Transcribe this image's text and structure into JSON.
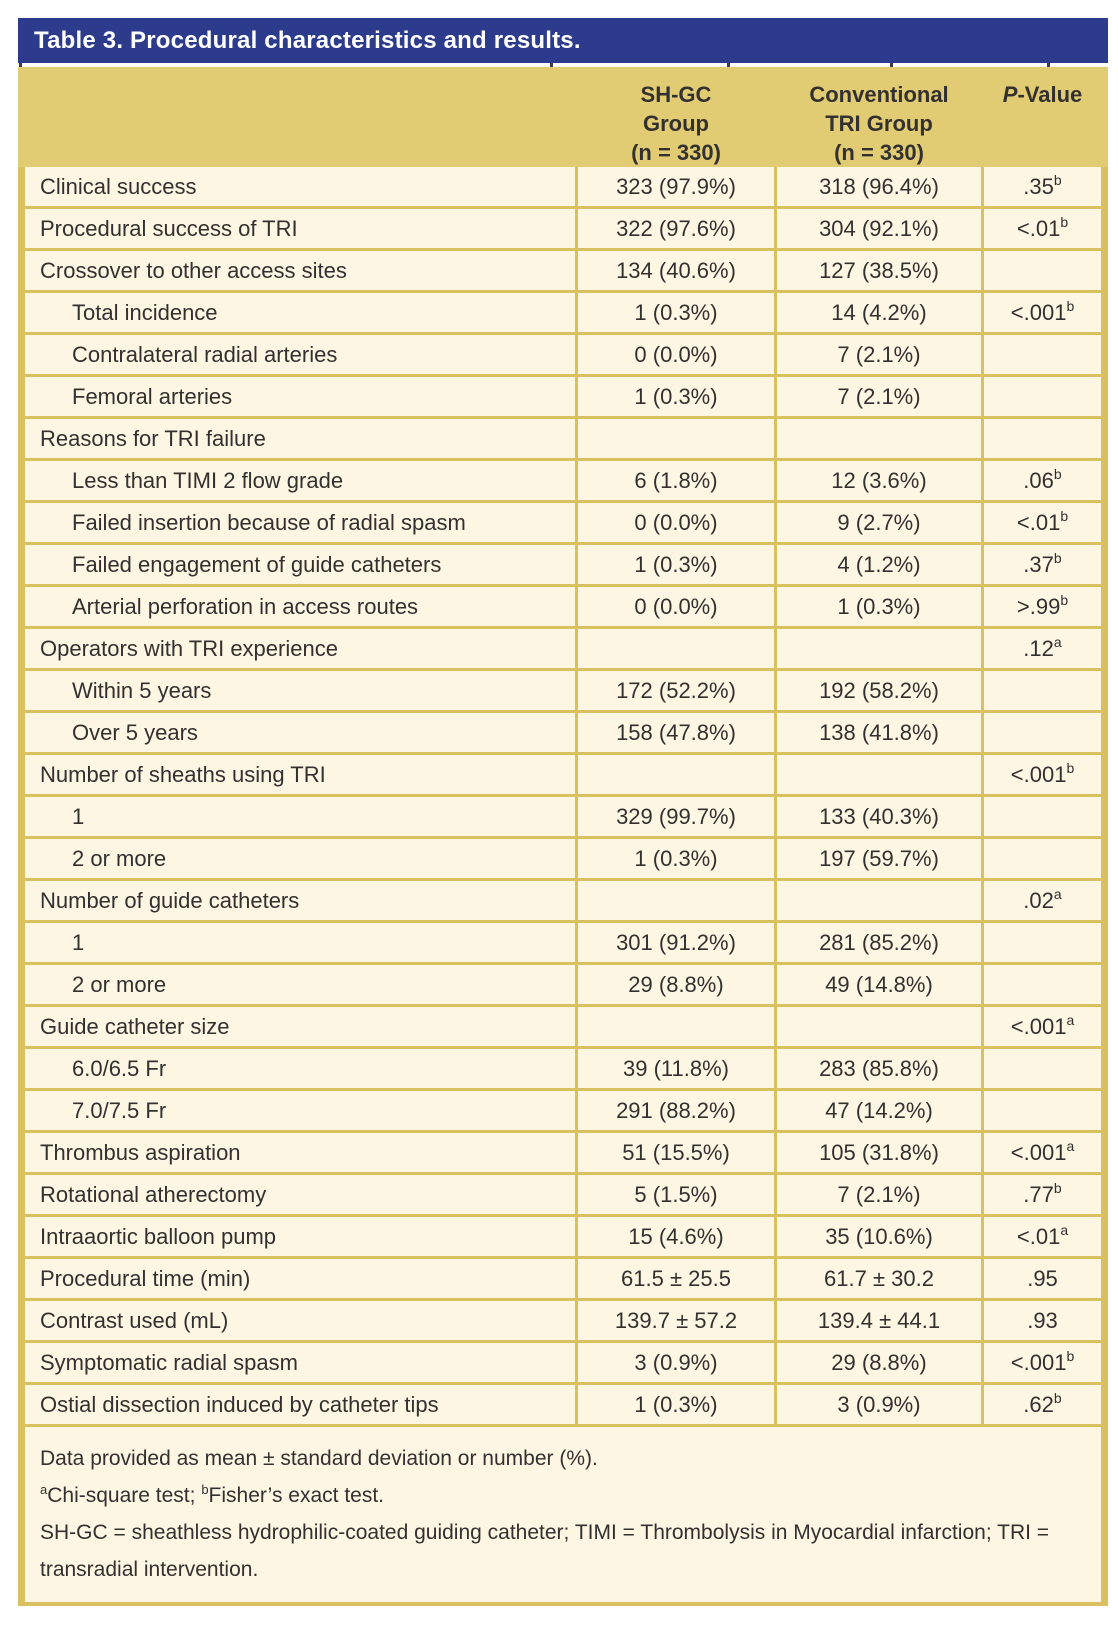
{
  "title": "Table 3. Procedural characteristics and results.",
  "header": {
    "shgc_lines": [
      "SH-GC",
      "Group",
      "(n = 330)"
    ],
    "conventional_lines": [
      "Conventional",
      "TRI Group",
      "(n = 330)"
    ],
    "pvalue_italic": "P",
    "pvalue_rest": "-Value"
  },
  "rows": [
    {
      "label": "Clinical success",
      "indent": false,
      "shgc": "323 (97.9%)",
      "conventional": "318 (96.4%)",
      "p": ".35",
      "p_sup": "b"
    },
    {
      "label": "Procedural success of TRI",
      "indent": false,
      "shgc": "322 (97.6%)",
      "conventional": "304 (92.1%)",
      "p": "<.01",
      "p_sup": "b"
    },
    {
      "label": "Crossover to other access sites",
      "indent": false,
      "shgc": "134 (40.6%)",
      "conventional": "127 (38.5%)",
      "p": "",
      "p_sup": ""
    },
    {
      "label": "Total incidence",
      "indent": true,
      "shgc": "1 (0.3%)",
      "conventional": "14 (4.2%)",
      "p": "<.001",
      "p_sup": "b"
    },
    {
      "label": "Contralateral radial arteries",
      "indent": true,
      "shgc": "0 (0.0%)",
      "conventional": "7 (2.1%)",
      "p": "",
      "p_sup": ""
    },
    {
      "label": "Femoral arteries",
      "indent": true,
      "shgc": "1 (0.3%)",
      "conventional": "7 (2.1%)",
      "p": "",
      "p_sup": ""
    },
    {
      "label": "Reasons for TRI failure",
      "indent": false,
      "shgc": "",
      "conventional": "",
      "p": "",
      "p_sup": ""
    },
    {
      "label": "Less than TIMI 2 flow grade",
      "indent": true,
      "shgc": "6 (1.8%)",
      "conventional": "12 (3.6%)",
      "p": ".06",
      "p_sup": "b"
    },
    {
      "label": "Failed insertion because of radial spasm",
      "indent": true,
      "shgc": "0 (0.0%)",
      "conventional": "9 (2.7%)",
      "p": "<.01",
      "p_sup": "b"
    },
    {
      "label": "Failed engagement of guide catheters",
      "indent": true,
      "shgc": "1 (0.3%)",
      "conventional": "4 (1.2%)",
      "p": ".37",
      "p_sup": "b"
    },
    {
      "label": "Arterial perforation in access routes",
      "indent": true,
      "shgc": "0 (0.0%)",
      "conventional": "1 (0.3%)",
      "p": ">.99",
      "p_sup": "b"
    },
    {
      "label": "Operators with TRI experience",
      "indent": false,
      "shgc": "",
      "conventional": "",
      "p": ".12",
      "p_sup": "a"
    },
    {
      "label": "Within 5 years",
      "indent": true,
      "shgc": "172 (52.2%)",
      "conventional": "192 (58.2%)",
      "p": "",
      "p_sup": ""
    },
    {
      "label": "Over 5 years",
      "indent": true,
      "shgc": "158 (47.8%)",
      "conventional": "138 (41.8%)",
      "p": "",
      "p_sup": ""
    },
    {
      "label": "Number of sheaths using TRI",
      "indent": false,
      "shgc": "",
      "conventional": "",
      "p": "<.001",
      "p_sup": "b"
    },
    {
      "label": "1",
      "indent": true,
      "shgc": "329 (99.7%)",
      "conventional": "133 (40.3%)",
      "p": "",
      "p_sup": ""
    },
    {
      "label": "2 or more",
      "indent": true,
      "shgc": "1 (0.3%)",
      "conventional": "197 (59.7%)",
      "p": "",
      "p_sup": ""
    },
    {
      "label": "Number of guide catheters",
      "indent": false,
      "shgc": "",
      "conventional": "",
      "p": ".02",
      "p_sup": "a"
    },
    {
      "label": "1",
      "indent": true,
      "shgc": "301 (91.2%)",
      "conventional": "281 (85.2%)",
      "p": "",
      "p_sup": ""
    },
    {
      "label": "2 or more",
      "indent": true,
      "shgc": "29 (8.8%)",
      "conventional": "49 (14.8%)",
      "p": "",
      "p_sup": ""
    },
    {
      "label": "Guide catheter size",
      "indent": false,
      "shgc": "",
      "conventional": "",
      "p": "<.001",
      "p_sup": "a"
    },
    {
      "label": "6.0/6.5 Fr",
      "indent": true,
      "shgc": "39 (11.8%)",
      "conventional": "283 (85.8%)",
      "p": "",
      "p_sup": ""
    },
    {
      "label": "7.0/7.5 Fr",
      "indent": true,
      "shgc": "291 (88.2%)",
      "conventional": "47 (14.2%)",
      "p": "",
      "p_sup": ""
    },
    {
      "label": "Thrombus aspiration",
      "indent": false,
      "shgc": "51 (15.5%)",
      "conventional": "105 (31.8%)",
      "p": "<.001",
      "p_sup": "a"
    },
    {
      "label": "Rotational atherectomy",
      "indent": false,
      "shgc": "5 (1.5%)",
      "conventional": "7 (2.1%)",
      "p": ".77",
      "p_sup": "b"
    },
    {
      "label": "Intraaortic balloon pump",
      "indent": false,
      "shgc": "15 (4.6%)",
      "conventional": "35 (10.6%)",
      "p": "<.01",
      "p_sup": "a"
    },
    {
      "label": "Procedural time (min)",
      "indent": false,
      "shgc": "61.5 ± 25.5",
      "conventional": "61.7 ± 30.2",
      "p": ".95",
      "p_sup": ""
    },
    {
      "label": "Contrast used (mL)",
      "indent": false,
      "shgc": "139.7 ± 57.2",
      "conventional": "139.4 ± 44.1",
      "p": ".93",
      "p_sup": ""
    },
    {
      "label": "Symptomatic radial spasm",
      "indent": false,
      "shgc": "3 (0.9%)",
      "conventional": "29 (8.8%)",
      "p": "<.001",
      "p_sup": "b"
    },
    {
      "label": "Ostial dissection induced by catheter tips",
      "indent": false,
      "shgc": "1 (0.3%)",
      "conventional": "3 (0.9%)",
      "p": ".62",
      "p_sup": "b"
    }
  ],
  "footnotes": {
    "line1": "Data provided as mean ± standard deviation or number (%).",
    "chi_sup": "a",
    "chi_text": "Chi-square test; ",
    "fisher_sup": "b",
    "fisher_text": "Fisher’s exact test.",
    "abbrev": "SH-GC = sheathless hydrophilic-coated guiding catheter; TIMI = Thrombolysis in Myocardial infarction; TRI = transradial intervention."
  },
  "colors": {
    "title_bar": "#2d3b8c",
    "header_tan": "#e2cc73",
    "grid_line": "#d9c160",
    "row_cream": "#fcf6e3",
    "text": "#333130",
    "title_text": "#ffffff"
  }
}
